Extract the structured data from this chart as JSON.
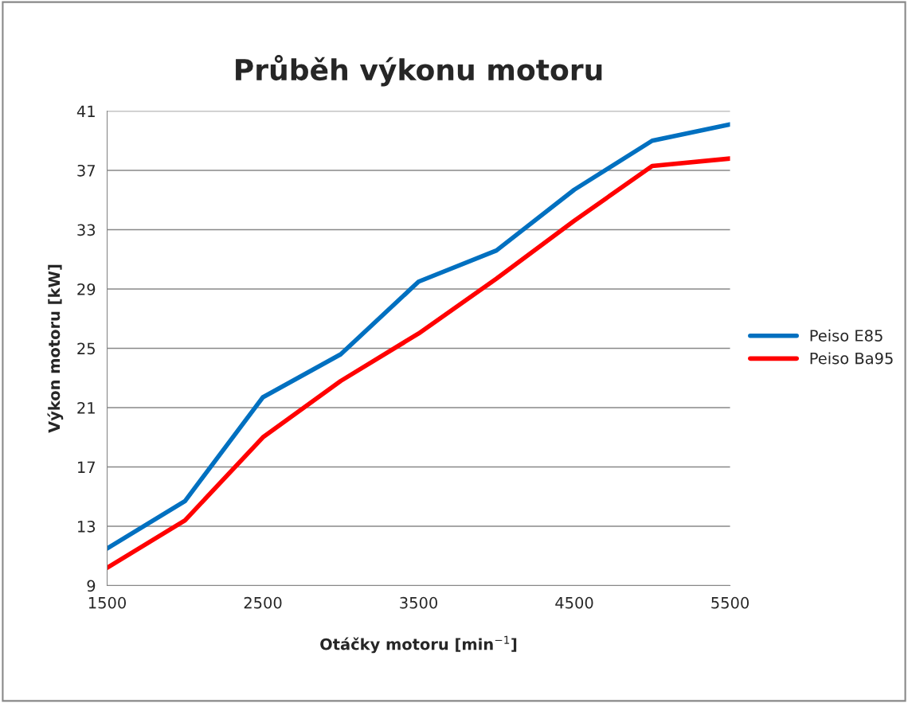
{
  "chart_data": {
    "type": "line",
    "title": "Průběh výkonu motoru",
    "xlabel": "Otáčky motoru [min$^{−1}$]",
    "ylabel": "Výkon motoru [kW]",
    "x": [
      1500,
      2000,
      2500,
      3000,
      3500,
      4000,
      4500,
      5000,
      5500
    ],
    "series": [
      {
        "name": "Peiso E85",
        "color": "#0070c0",
        "values": [
          11.5,
          14.7,
          21.7,
          24.6,
          29.5,
          31.6,
          35.7,
          39.0,
          40.1
        ]
      },
      {
        "name": "Peiso Ba95",
        "color": "#ff0000",
        "values": [
          10.2,
          13.4,
          19.0,
          22.8,
          26.0,
          29.7,
          33.6,
          37.3,
          37.8
        ]
      }
    ],
    "xlim": [
      1500,
      5500
    ],
    "xticks": [
      1500,
      2500,
      3500,
      4500,
      5500
    ],
    "ylim": [
      9,
      41
    ],
    "yticks": [
      9,
      13,
      17,
      21,
      25,
      29,
      33,
      37,
      41
    ],
    "grid": "y",
    "legend": "right",
    "marker": "none",
    "line_style": "solid"
  }
}
